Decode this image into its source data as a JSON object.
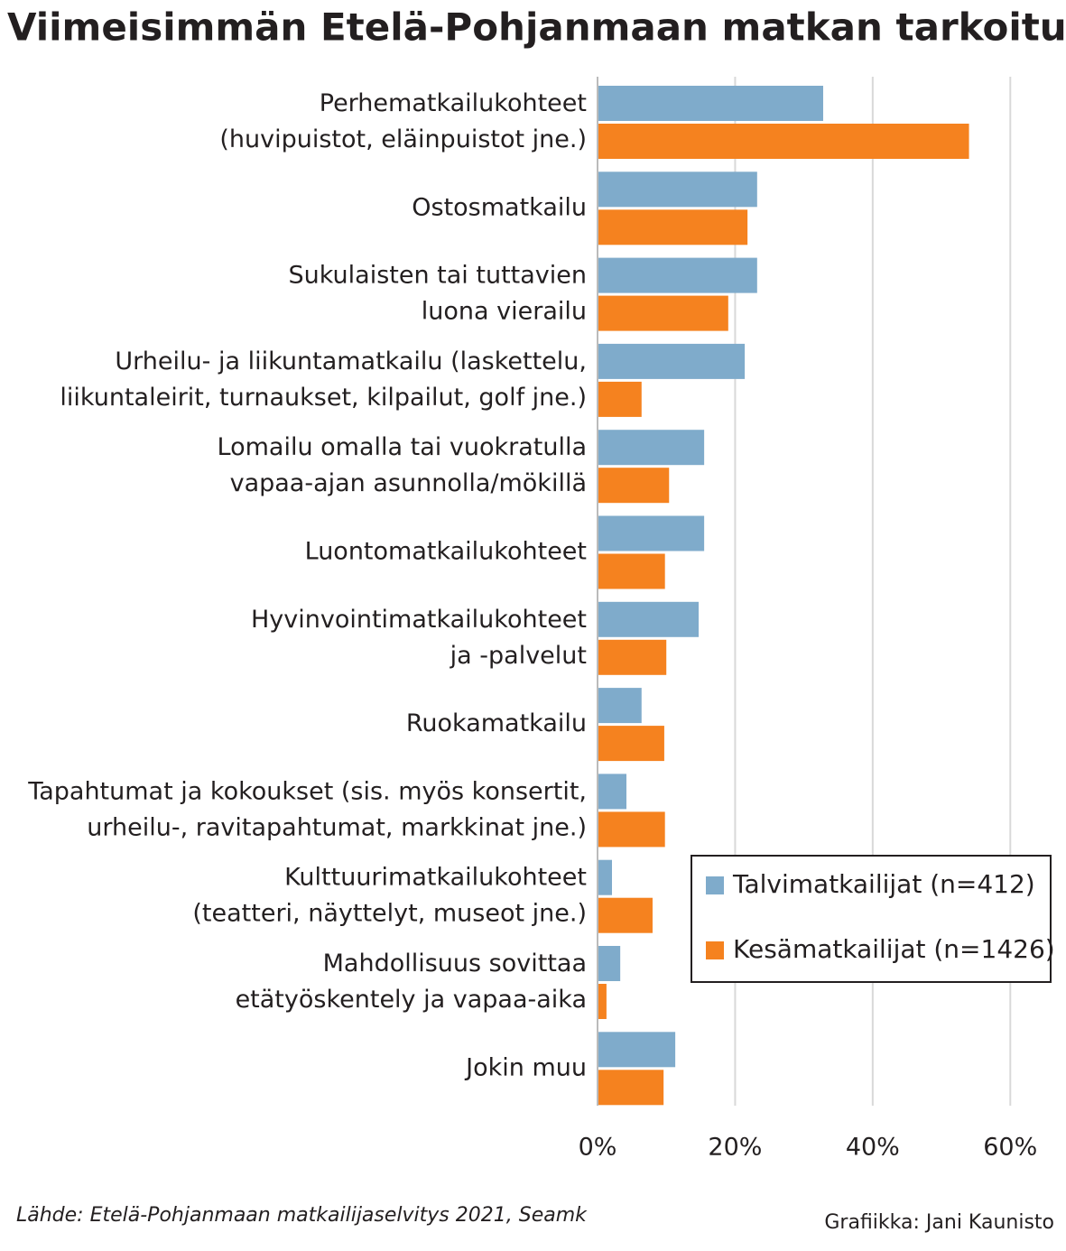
{
  "chart_data": {
    "type": "hbar",
    "title": "Viimeisimmän Etelä-Pohjanmaan matkan tarkoitus",
    "categories": [
      [
        "Perhematkailukohteet",
        "(huvipuistot, eläinpuistot jne.)"
      ],
      [
        "Ostosmatkailu"
      ],
      [
        "Sukulaisten tai tuttavien",
        "luona vierailu"
      ],
      [
        "Urheilu- ja liikuntamatkailu (laskettelu,",
        "liikuntaleirit, turnaukset, kilpailut, golf jne.)"
      ],
      [
        "Lomailu omalla tai vuokratulla",
        "vapaa-ajan asunnolla/mökillä"
      ],
      [
        "Luontomatkailukohteet"
      ],
      [
        "Hyvinvointimatkailukohteet",
        "ja -palvelut"
      ],
      [
        "Ruokamatkailu"
      ],
      [
        "Tapahtumat ja kokoukset (sis. myös konsertit,",
        "urheilu-, ravitapahtumat, markkinat jne.)"
      ],
      [
        "Kulttuurimatkailukohteet",
        "(teatteri, näyttelyt, museot jne.)"
      ],
      [
        "Mahdollisuus sovittaa",
        "etätyöskentely ja vapaa-aika"
      ],
      [
        "Jokin muu"
      ]
    ],
    "series": [
      {
        "name": "Talvimatkailijat (n=412)",
        "color": "#7fabcb",
        "values": [
          32.8,
          23.2,
          23.2,
          21.4,
          15.5,
          15.5,
          14.7,
          6.4,
          4.2,
          2.1,
          3.3,
          11.3
        ]
      },
      {
        "name": "Kesämatkailijat (n=1426)",
        "color": "#f5821f",
        "values": [
          54.0,
          21.8,
          19.0,
          6.4,
          10.4,
          9.8,
          10.0,
          9.7,
          9.8,
          8.0,
          1.3,
          9.6
        ]
      }
    ],
    "xlim": [
      0,
      66
    ],
    "xticks": [
      {
        "value": 0,
        "label": "0%"
      },
      {
        "value": 20,
        "label": "20%"
      },
      {
        "value": 40,
        "label": "40%"
      },
      {
        "value": 60,
        "label": "60%"
      }
    ],
    "grid": true,
    "legend": "lower right",
    "source": "Lähde: Etelä-Pohjanmaan matkailijaselvitys 2021, Seamk",
    "credit": "Grafiikka: Jani Kaunisto"
  }
}
